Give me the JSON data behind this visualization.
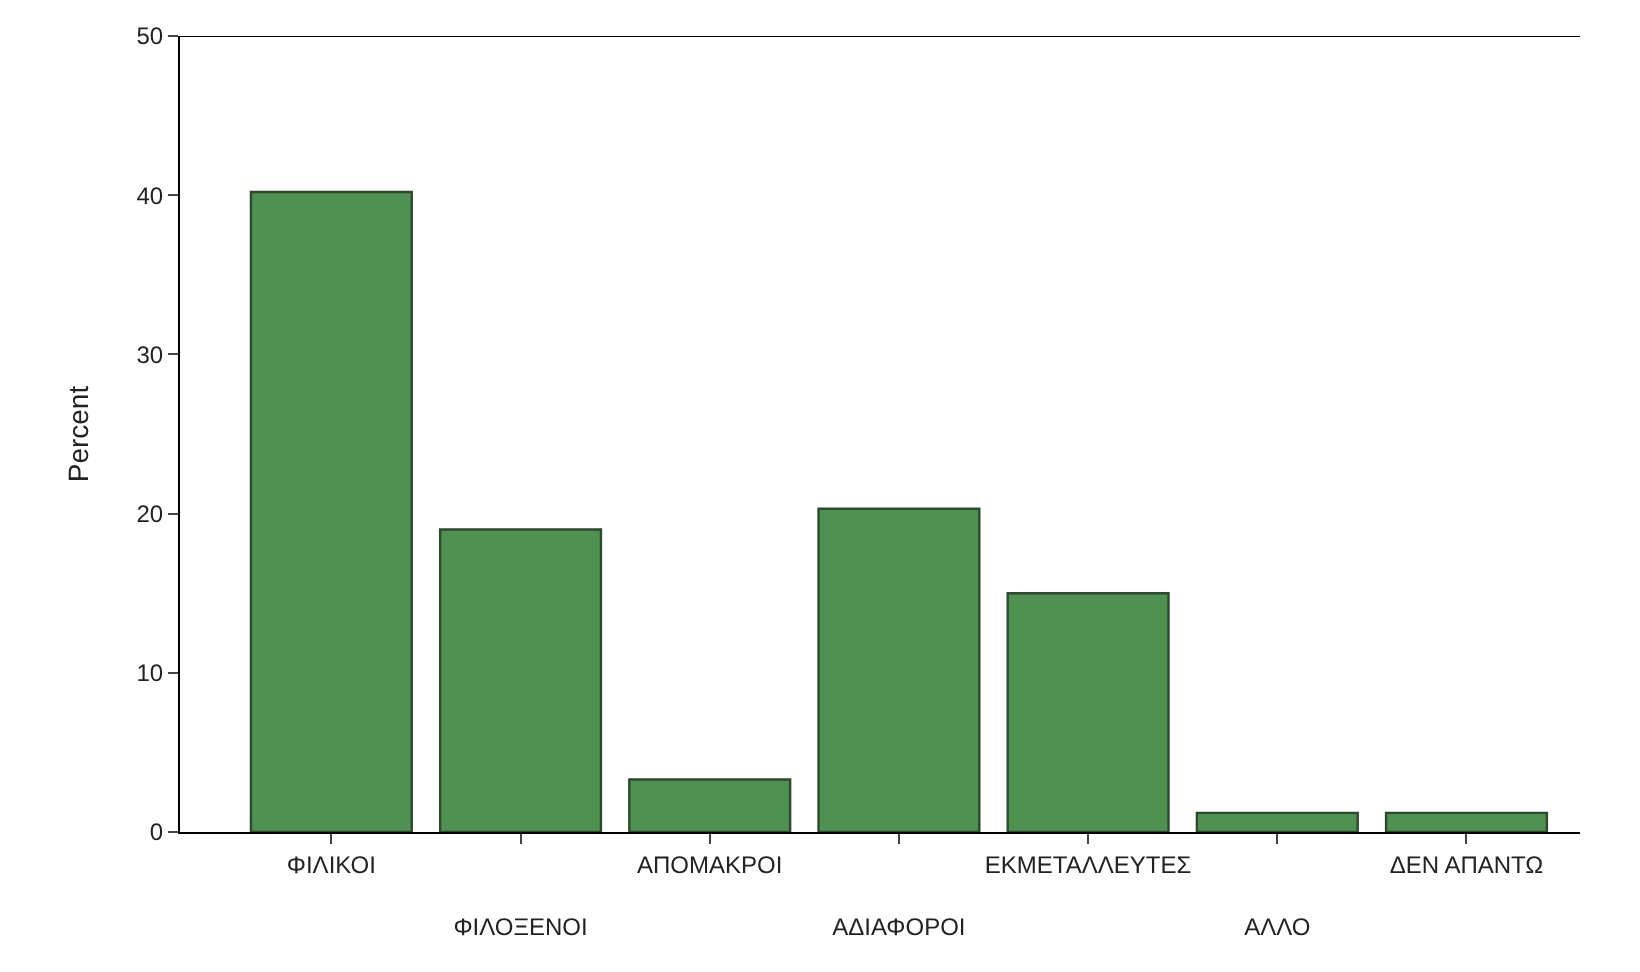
{
  "chart_data": {
    "type": "bar",
    "ylabel": "Percent",
    "categories": [
      "ΦΙΛΙΚΟΙ",
      "ΦΙΛΟΞΕΝΟΙ",
      "ΑΠΟΜΑΚΡΟΙ",
      "ΑΔΙΑΦΟΡΟΙ",
      "ΕΚΜΕΤΑΛΛΕΥΤΕΣ",
      "ΑΛΛΟ",
      "ΔΕΝ ΑΠΑΝΤΩ"
    ],
    "values": [
      40.2,
      19,
      3.3,
      20.3,
      15,
      1.2,
      1.2
    ],
    "color": "#4f9150",
    "ylim": [
      0,
      50
    ],
    "yticks": [
      0,
      10,
      20,
      30,
      40,
      50
    ]
  }
}
